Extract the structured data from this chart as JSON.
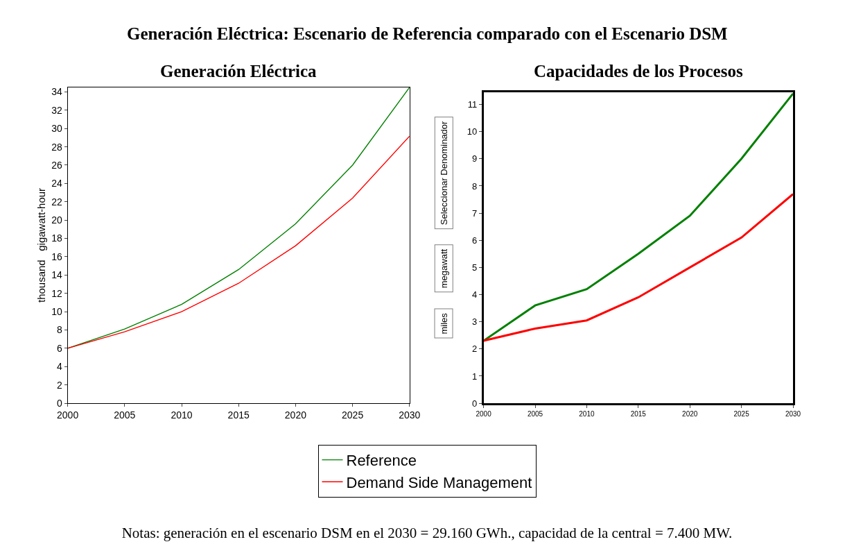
{
  "chart_data": [
    {
      "type": "line",
      "title": "Generación Eléctrica",
      "ylabel": "thousand   gigawatt-hour",
      "x": [
        2000,
        2005,
        2010,
        2015,
        2020,
        2025,
        2030
      ],
      "series": [
        {
          "name": "Reference",
          "color": "#008000",
          "values": [
            6.0,
            8.1,
            10.8,
            14.6,
            19.6,
            26.0,
            34.5
          ]
        },
        {
          "name": "Demand Side Management",
          "color": "#ff0000",
          "values": [
            6.0,
            7.8,
            10.0,
            13.1,
            17.2,
            22.4,
            29.16
          ]
        }
      ],
      "xlim": [
        2000,
        2030
      ],
      "xticks": [
        2000,
        2005,
        2010,
        2015,
        2020,
        2025,
        2030
      ],
      "ylim": [
        0,
        34.5
      ],
      "yticks": [
        0,
        2,
        4,
        6,
        8,
        10,
        12,
        14,
        16,
        18,
        20,
        22,
        24,
        26,
        28,
        30,
        32,
        34
      ],
      "legend": "bottom"
    },
    {
      "type": "line",
      "title": "Capacidades de los Procesos",
      "annotations": [
        "miles",
        "megawatt",
        "Seleccionar Denominador"
      ],
      "x": [
        2000,
        2005,
        2010,
        2015,
        2020,
        2025,
        2030
      ],
      "series": [
        {
          "color": "#008000",
          "values": [
            2.3,
            3.6,
            4.2,
            5.5,
            6.9,
            9.0,
            11.4
          ]
        },
        {
          "color": "#ff0000",
          "values": [
            2.3,
            2.75,
            3.05,
            3.9,
            5.0,
            6.1,
            7.7
          ]
        }
      ],
      "xlim": [
        2000,
        2030
      ],
      "xticks": [
        2000,
        2005,
        2010,
        2015,
        2020,
        2025,
        2030
      ],
      "ylim": [
        0,
        11.45
      ],
      "yticks": [
        0,
        1,
        2,
        3,
        4,
        5,
        6,
        7,
        8,
        9,
        10,
        11
      ]
    },
    {
      "type": "other",
      "title": "Generación Eléctrica: Escenario de Referencia comparado con el Escenario DSM",
      "annotations": [
        "Notas: generación en el escenario DSM en el 2030 = 29.160 GWh., capacidad de la central = 7.400 MW."
      ]
    }
  ]
}
